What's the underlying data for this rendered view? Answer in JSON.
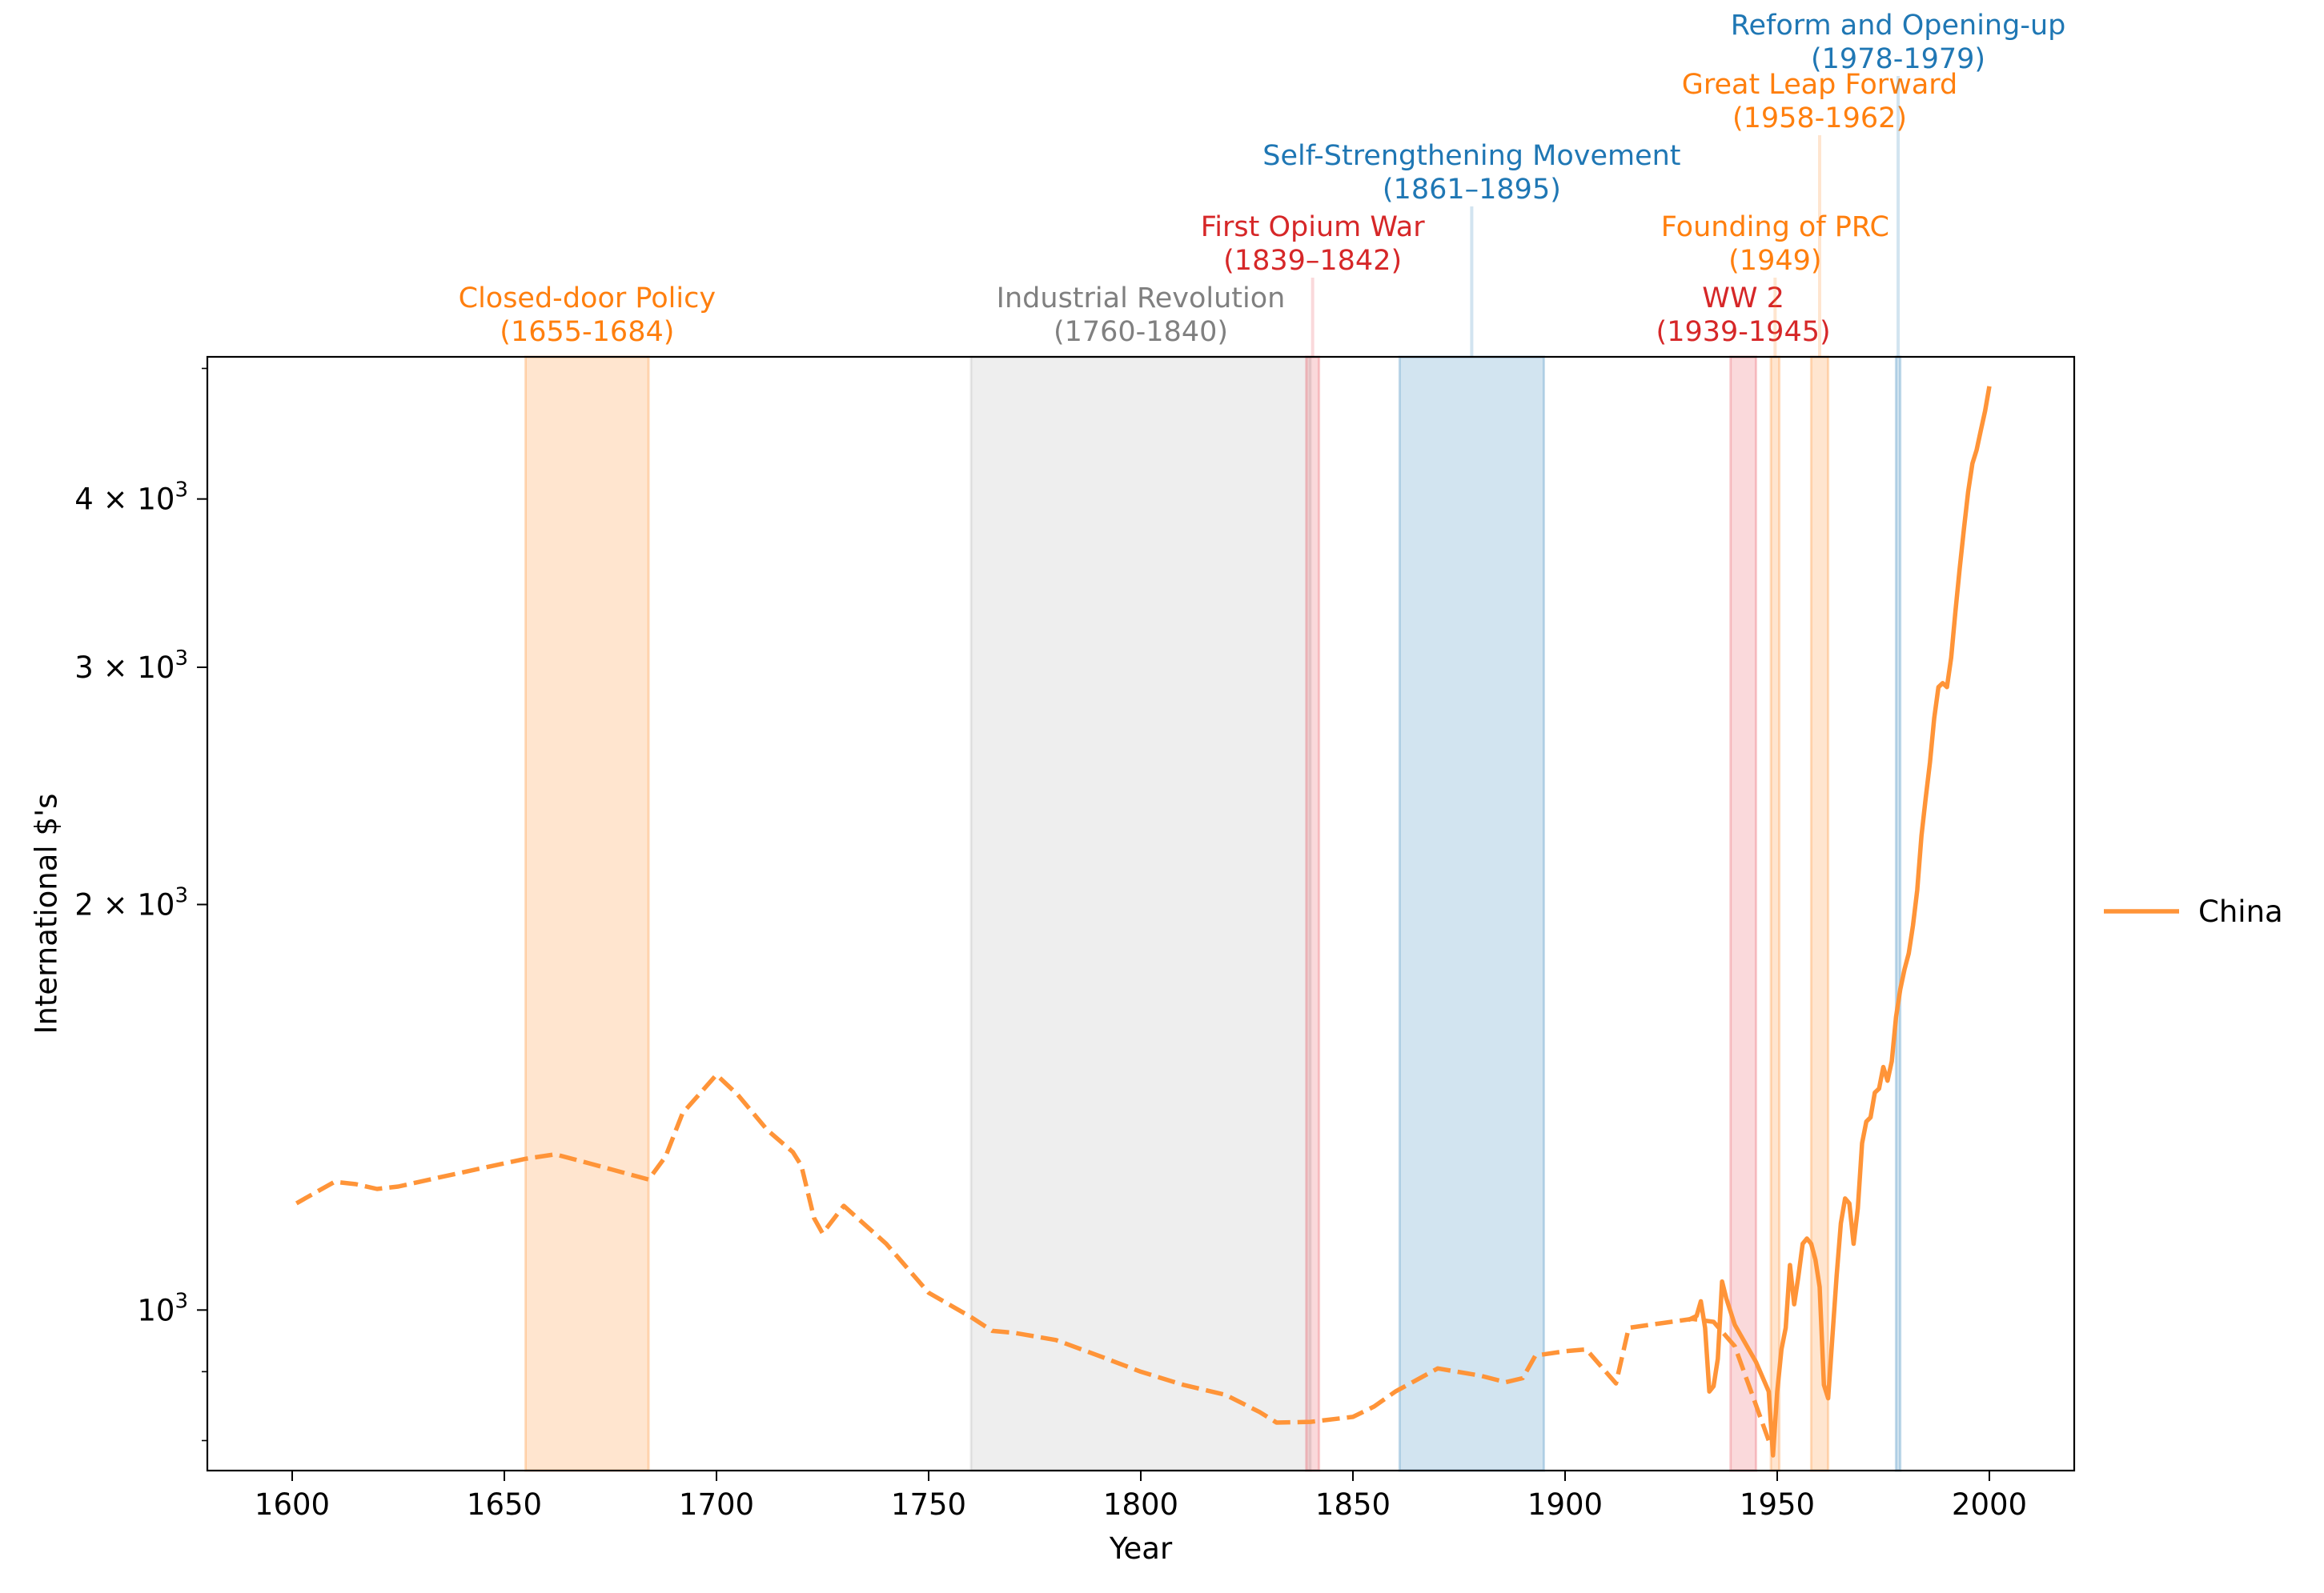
{
  "chart_data": {
    "type": "line",
    "xlabel": "Year",
    "ylabel": "International $'s",
    "xlim": [
      1580,
      2020
    ],
    "ylim": [
      760,
      5100
    ],
    "yscale": "log",
    "grid": false,
    "legend_placement": "center-right outside",
    "x_ticks": [
      1600,
      1650,
      1700,
      1750,
      1800,
      1850,
      1900,
      1950,
      2000
    ],
    "y_ticks": [
      {
        "value": 1000,
        "mantissa": "",
        "exp": "3"
      },
      {
        "value": 2000,
        "mantissa": "2 × ",
        "exp": "3"
      },
      {
        "value": 3000,
        "mantissa": "3 × ",
        "exp": "3"
      },
      {
        "value": 4000,
        "mantissa": "4 × ",
        "exp": "3"
      }
    ],
    "y_minor_ticks": [
      800,
      900,
      5000
    ],
    "legend": [
      {
        "label": "China",
        "color": "#ff9438"
      }
    ],
    "periods": [
      {
        "name": "Closed-door Policy",
        "years": "(1655-1684)",
        "start": 1655,
        "end": 1684,
        "color": "#ff7f0e",
        "label_color": "#ff7f0e",
        "label_x": 1669.5,
        "label_level": 0,
        "line_x": null
      },
      {
        "name": "Industrial Revolution",
        "years": "(1760-1840)",
        "start": 1760,
        "end": 1840,
        "color": "#a8a8a8",
        "label_color": "#808080",
        "label_x": 1800,
        "label_level": 0,
        "line_x": null
      },
      {
        "name": "First Opium War",
        "years": "(1839–1842)",
        "start": 1839,
        "end": 1842,
        "color": "#e8404a",
        "label_color": "#d62728",
        "label_x": 1840.5,
        "label_level": 1,
        "line_x": 1840.5
      },
      {
        "name": "Self-Strengthening Movement",
        "years": "(1861–1895)",
        "start": 1861,
        "end": 1895,
        "color": "#1f77b4",
        "label_color": "#1f77b4",
        "label_x": 1878,
        "label_level": 2,
        "line_x": 1878
      },
      {
        "name": "WW 2",
        "years": "(1939-1945)",
        "start": 1939,
        "end": 1945,
        "color": "#e8404a",
        "label_color": "#d62728",
        "label_x": 1942,
        "label_level": 0,
        "line_x": null
      },
      {
        "name": "Founding of PRC",
        "years": "(1949)",
        "start": 1948.5,
        "end": 1950.5,
        "color": "#ff7f0e",
        "label_color": "#ff7f0e",
        "label_x": 1949.5,
        "label_level": 1,
        "line_x": 1949.5
      },
      {
        "name": "Great Leap Forward",
        "years": "(1958-1962)",
        "start": 1958,
        "end": 1962,
        "color": "#ff7f0e",
        "label_color": "#ff7f0e",
        "label_x": 1960,
        "label_level": 3,
        "line_x": 1960
      },
      {
        "name": "Reform and Opening-up",
        "years": "(1978-1979)",
        "start": 1978,
        "end": 1979,
        "color": "#1f77b4",
        "label_color": "#1f77b4",
        "label_x": 1978.5,
        "label_level": 4,
        "line_x": 1978.5
      }
    ],
    "series": [
      {
        "name": "China",
        "style": "dashed",
        "color": "#ff9438",
        "points": [
          [
            1601,
            1200
          ],
          [
            1605,
            1220
          ],
          [
            1610,
            1245
          ],
          [
            1615,
            1240
          ],
          [
            1620,
            1230
          ],
          [
            1625,
            1235
          ],
          [
            1635,
            1255
          ],
          [
            1645,
            1275
          ],
          [
            1655,
            1295
          ],
          [
            1662,
            1305
          ],
          [
            1670,
            1285
          ],
          [
            1684,
            1250
          ],
          [
            1688,
            1300
          ],
          [
            1692,
            1400
          ],
          [
            1700,
            1495
          ],
          [
            1705,
            1445
          ],
          [
            1712,
            1360
          ],
          [
            1718,
            1310
          ],
          [
            1720,
            1280
          ],
          [
            1723,
            1170
          ],
          [
            1725,
            1140
          ],
          [
            1730,
            1195
          ],
          [
            1740,
            1120
          ],
          [
            1750,
            1030
          ],
          [
            1760,
            988
          ],
          [
            1765,
            965
          ],
          [
            1770,
            962
          ],
          [
            1780,
            950
          ],
          [
            1790,
            925
          ],
          [
            1800,
            900
          ],
          [
            1810,
            880
          ],
          [
            1820,
            865
          ],
          [
            1828,
            840
          ],
          [
            1832,
            825
          ],
          [
            1840,
            826
          ],
          [
            1850,
            833
          ],
          [
            1855,
            848
          ],
          [
            1860,
            870
          ],
          [
            1870,
            905
          ],
          [
            1880,
            894
          ],
          [
            1886,
            884
          ],
          [
            1890,
            890
          ],
          [
            1893,
            925
          ],
          [
            1900,
            932
          ],
          [
            1905,
            935
          ],
          [
            1912,
            882
          ],
          [
            1915,
            970
          ],
          [
            1920,
            975
          ],
          [
            1925,
            980
          ],
          [
            1930,
            985
          ],
          [
            1935,
            980
          ],
          [
            1940,
            940
          ],
          [
            1945,
            850
          ],
          [
            1948,
            800
          ]
        ]
      },
      {
        "name": "China",
        "style": "solid",
        "color": "#ff9438",
        "points": [
          [
            1929,
            983
          ],
          [
            1931,
            990
          ],
          [
            1932,
            1015
          ],
          [
            1933,
            970
          ],
          [
            1934,
            870
          ],
          [
            1935,
            878
          ],
          [
            1936,
            920
          ],
          [
            1937,
            1050
          ],
          [
            1938,
            1020
          ],
          [
            1940,
            975
          ],
          [
            1945,
            915
          ],
          [
            1948,
            870
          ],
          [
            1949,
            780
          ],
          [
            1950,
            870
          ],
          [
            1951,
            935
          ],
          [
            1952,
            970
          ],
          [
            1953,
            1080
          ],
          [
            1954,
            1010
          ],
          [
            1955,
            1060
          ],
          [
            1956,
            1120
          ],
          [
            1957,
            1130
          ],
          [
            1958,
            1120
          ],
          [
            1959,
            1090
          ],
          [
            1960,
            1040
          ],
          [
            1961,
            880
          ],
          [
            1962,
            860
          ],
          [
            1963,
            955
          ],
          [
            1964,
            1060
          ],
          [
            1965,
            1160
          ],
          [
            1966,
            1210
          ],
          [
            1967,
            1200
          ],
          [
            1968,
            1120
          ],
          [
            1969,
            1190
          ],
          [
            1970,
            1330
          ],
          [
            1971,
            1380
          ],
          [
            1972,
            1390
          ],
          [
            1973,
            1450
          ],
          [
            1974,
            1460
          ],
          [
            1975,
            1515
          ],
          [
            1976,
            1480
          ],
          [
            1977,
            1530
          ],
          [
            1978,
            1650
          ],
          [
            1979,
            1730
          ],
          [
            1980,
            1790
          ],
          [
            1981,
            1840
          ],
          [
            1982,
            1930
          ],
          [
            1983,
            2050
          ],
          [
            1984,
            2250
          ],
          [
            1985,
            2400
          ],
          [
            1986,
            2550
          ],
          [
            1987,
            2750
          ],
          [
            1988,
            2900
          ],
          [
            1989,
            2920
          ],
          [
            1990,
            2900
          ],
          [
            1991,
            3050
          ],
          [
            1992,
            3300
          ],
          [
            1993,
            3550
          ],
          [
            1994,
            3800
          ],
          [
            1995,
            4050
          ],
          [
            1996,
            4250
          ],
          [
            1997,
            4350
          ],
          [
            1998,
            4500
          ],
          [
            1999,
            4650
          ],
          [
            2000,
            4850
          ]
        ]
      }
    ]
  }
}
